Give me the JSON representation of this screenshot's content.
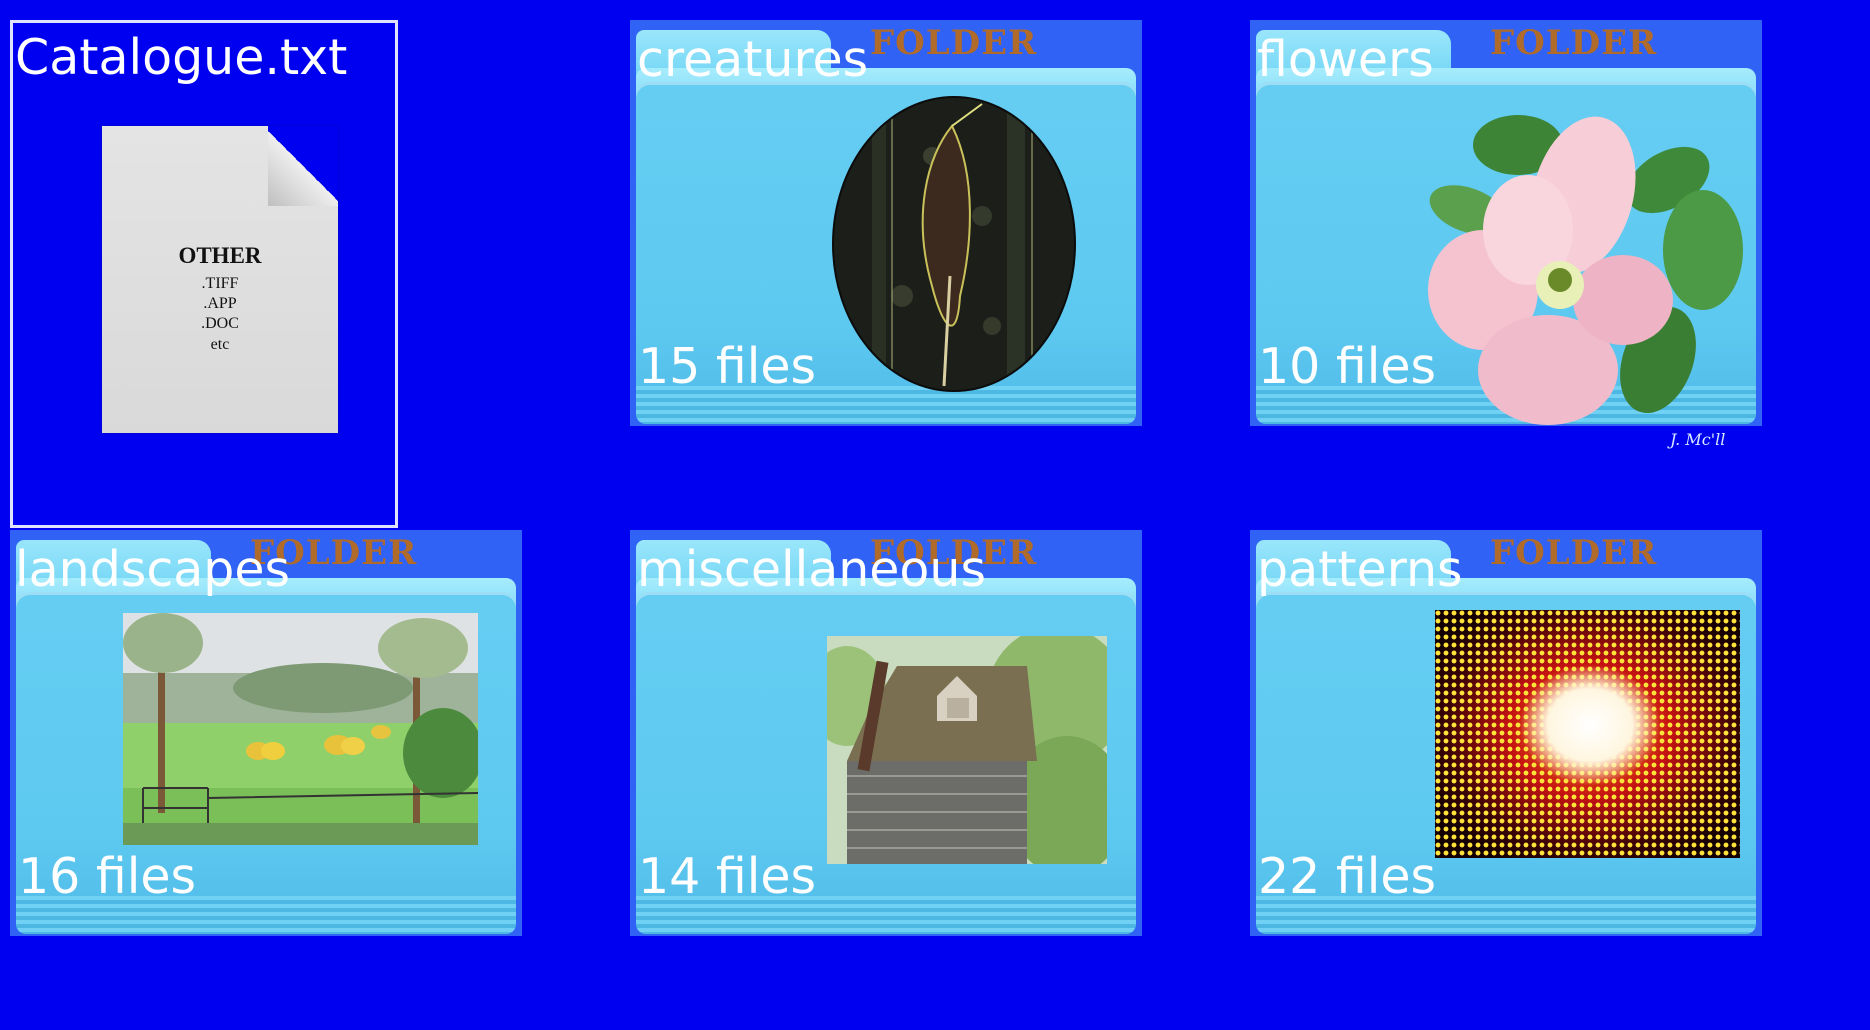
{
  "document": {
    "filename": "Catalogue.txt",
    "icon": {
      "title": "OTHER",
      "lines": [
        ".TIFF",
        ".APP",
        ".DOC",
        "etc"
      ]
    }
  },
  "folder_word": "FOLDER",
  "folders": [
    {
      "name": "creatures",
      "count": "15 files",
      "thumb": "bird-oval"
    },
    {
      "name": "flowers",
      "count": "10 files",
      "thumb": "pink-flower",
      "signature": "J. Mc'll"
    },
    {
      "name": "landscapes",
      "count": "16 files",
      "thumb": "hay-field"
    },
    {
      "name": "miscellaneous",
      "count": "14 files",
      "thumb": "stone-cottage"
    },
    {
      "name": "patterns",
      "count": "22 files",
      "thumb": "halftone-burst"
    }
  ],
  "colors": {
    "background": "#0000f0",
    "folder": "#5ec9f0",
    "folder_word": "#b06a2a"
  }
}
